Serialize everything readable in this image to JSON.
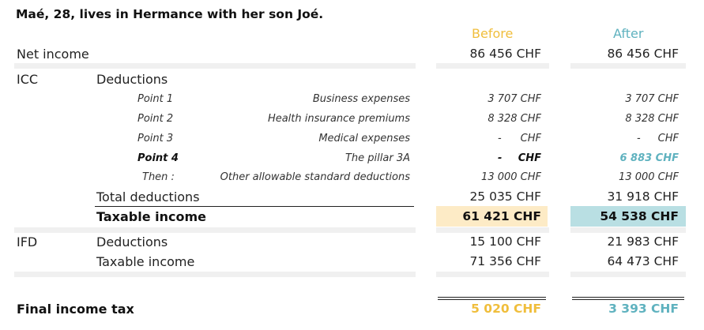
{
  "title": "Maé, 28, lives in Hermance with her son Joé.",
  "headers": {
    "before": "Before",
    "after": "After"
  },
  "net_income": {
    "label": "Net income",
    "before": "86 456 CHF",
    "after": "86 456 CHF"
  },
  "icc": {
    "label": "ICC",
    "deductions_label": "Deductions",
    "points": [
      {
        "point": "Point 1",
        "desc": "Business expenses",
        "before": "3 707 CHF",
        "after": "3 707 CHF"
      },
      {
        "point": "Point 2",
        "desc": "Health insurance premiums",
        "before": "8 328 CHF",
        "after": "8 328 CHF"
      },
      {
        "point": "Point 3",
        "desc": "Medical expenses",
        "before_dash": "-",
        "before_unit": "CHF",
        "after_dash": "-",
        "after_unit": "CHF"
      },
      {
        "point": "Point 4",
        "desc": "The pillar 3A",
        "before_dash": "-",
        "before_unit": "CHF",
        "after": "6 883 CHF"
      },
      {
        "point": "Then :",
        "desc": "Other allowable standard deductions",
        "before": "13 000 CHF",
        "after": "13 000 CHF"
      }
    ],
    "total_deductions": {
      "label": "Total deductions",
      "before": "25 035 CHF",
      "after": "31 918 CHF"
    },
    "taxable_income": {
      "label": "Taxable income",
      "before": "61 421 CHF",
      "after": "54 538 CHF"
    }
  },
  "ifd": {
    "label": "IFD",
    "deductions": {
      "label": "Deductions",
      "before": "15 100 CHF",
      "after": "21 983 CHF"
    },
    "taxable_income": {
      "label": "Taxable income",
      "before": "71 356 CHF",
      "after": "64 473 CHF"
    }
  },
  "final_tax": {
    "label": "Final income tax",
    "before": "5 020 CHF",
    "after": "3 393 CHF"
  },
  "colors": {
    "before_accent": "#f0be3c",
    "after_accent": "#5fb2bf",
    "before_highlight": "#fdebc6",
    "after_highlight": "#b9dfe3"
  }
}
